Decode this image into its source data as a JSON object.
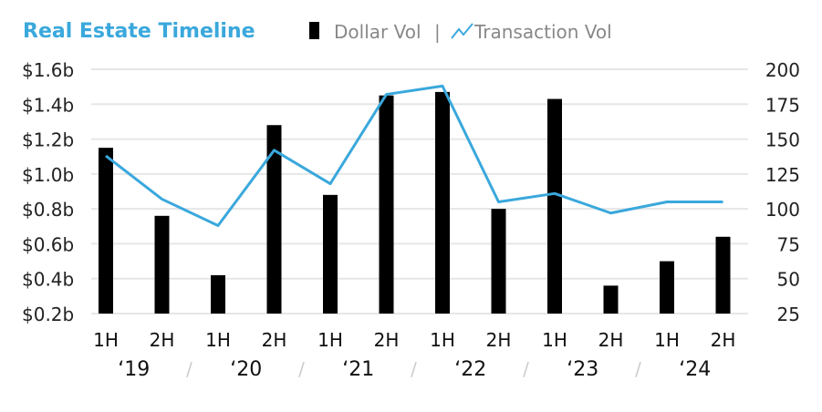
{
  "chart_data": {
    "type": "bar+line",
    "title": "Real Estate Timeline",
    "legend": [
      {
        "label": "Dollar Vol",
        "color": "#000000"
      },
      {
        "label": "Transaction Vol",
        "color": "#3aa8dc"
      }
    ],
    "legend_separator": "|",
    "legend_placement": "top",
    "categories": [
      "1H",
      "2H",
      "1H",
      "2H",
      "1H",
      "2H",
      "1H",
      "2H",
      "1H",
      "2H",
      "1H",
      "2H"
    ],
    "years": [
      "‘19",
      "‘20",
      "‘21",
      "‘22",
      "‘23",
      "‘24"
    ],
    "year_separator": "/",
    "series": [
      {
        "name": "Dollar Vol",
        "type": "bar",
        "axis": "left",
        "unit": "$b",
        "values": [
          1.15,
          0.76,
          0.42,
          1.28,
          0.88,
          1.45,
          1.47,
          0.8,
          1.43,
          0.36,
          0.5,
          0.64
        ]
      },
      {
        "name": "Transaction Vol",
        "type": "line",
        "axis": "right",
        "values": [
          138,
          107,
          88,
          142,
          118,
          182,
          188,
          105,
          111,
          97,
          105,
          105
        ]
      }
    ],
    "left_axis": {
      "ylim": [
        0.2,
        1.6
      ],
      "ticks": [
        "$1.6b",
        "$1.4b",
        "$1.2b",
        "$1.0b",
        "$0.8b",
        "$0.6b",
        "$0.4b",
        "$0.2b"
      ]
    },
    "right_axis": {
      "ylim": [
        25,
        200
      ],
      "ticks": [
        "200",
        "175",
        "150",
        "125",
        "100",
        "75",
        "50",
        "25"
      ]
    },
    "grid": true,
    "colors": {
      "title": "#3aa8dc",
      "line": "#3aa8dc",
      "bar": "#000000",
      "grid": "#e6e6e6",
      "text": "#222222",
      "legend_text": "#888888"
    }
  }
}
